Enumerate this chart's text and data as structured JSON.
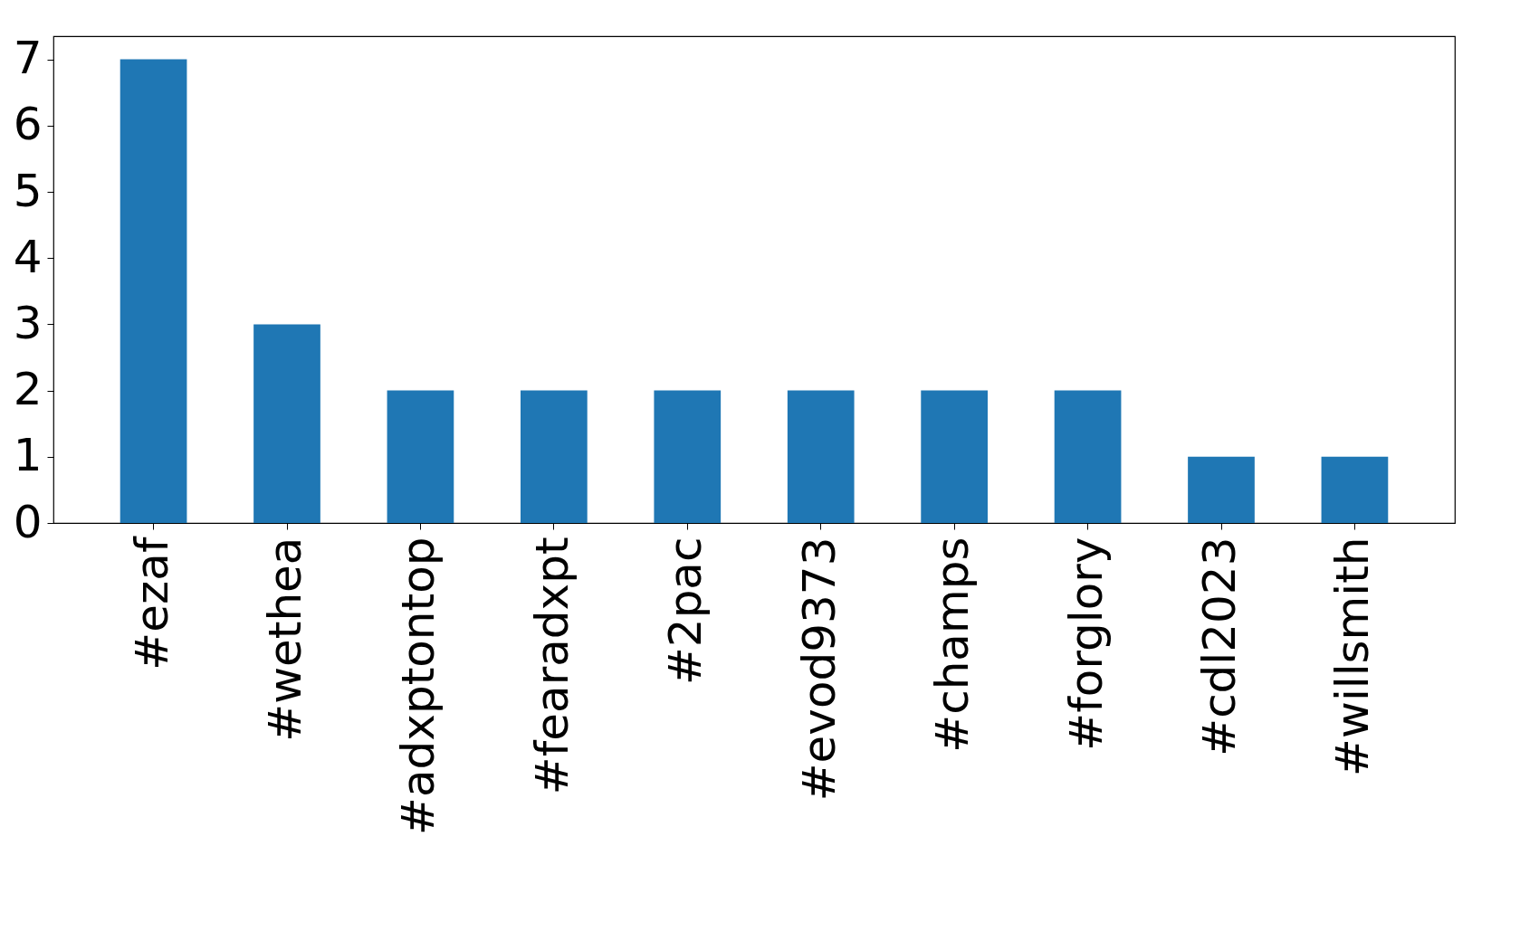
{
  "chart_data": {
    "type": "bar",
    "categories": [
      "#ezaf",
      "#wethea",
      "#adxptontop",
      "#fearadxpt",
      "#2pac",
      "#evod9373",
      "#champs",
      "#forglory",
      "#cdl2023",
      "#willsmith"
    ],
    "values": [
      7,
      3,
      2,
      2,
      2,
      2,
      2,
      2,
      1,
      1
    ],
    "color": "#1f77b4",
    "ylim": [
      0,
      7.35
    ],
    "yticks": [
      0,
      1,
      2,
      3,
      4,
      5,
      6,
      7
    ],
    "grid": false,
    "legend": false
  }
}
